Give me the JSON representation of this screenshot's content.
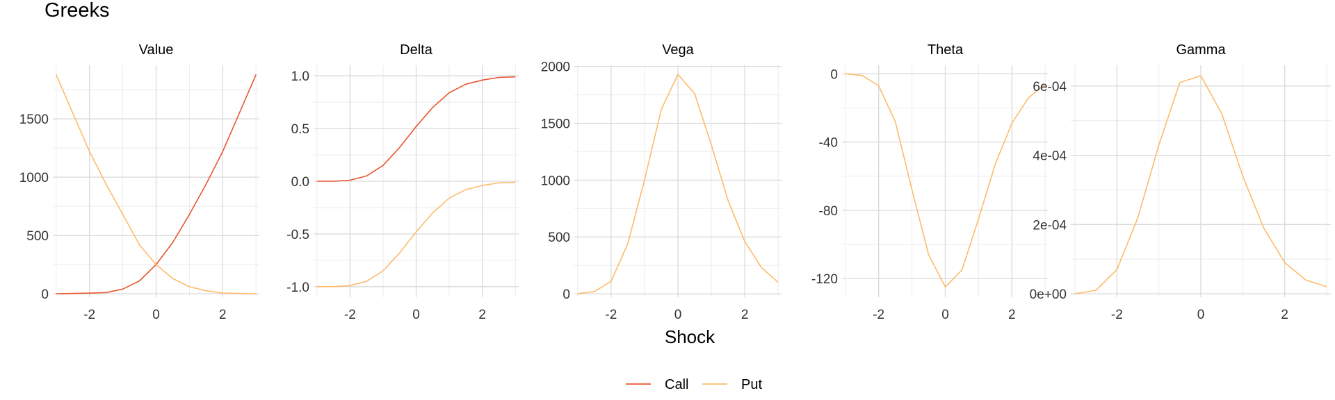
{
  "title": "Greeks",
  "xlabel": "Shock",
  "colors": {
    "call": "#E8552F",
    "put": "#FDBB6B",
    "grid_major": "#D9D9D9",
    "grid_minor": "#EBEBEB",
    "text": "#333333",
    "title": "#000000"
  },
  "legend": {
    "position": "bottom",
    "entries": [
      {
        "name": "Call",
        "color": "#E8552F"
      },
      {
        "name": "Put",
        "color": "#FDBB6B"
      }
    ]
  },
  "chart_data": [
    {
      "type": "line",
      "panel": "Value",
      "x": [
        -3,
        -2.5,
        -2,
        -1.5,
        -1,
        -0.5,
        0,
        0.5,
        1,
        1.5,
        2,
        2.5,
        3
      ],
      "xlim": [
        -3.1,
        3.1
      ],
      "xticks": [
        -2,
        0,
        2
      ],
      "ylim": [
        -30,
        1960
      ],
      "yticks": [
        0,
        500,
        1000,
        1500
      ],
      "ytick_labels": [
        "0",
        "500",
        "1000",
        "1500"
      ],
      "series": [
        {
          "name": "Call",
          "values": [
            0,
            2,
            5,
            10,
            40,
            110,
            250,
            440,
            680,
            940,
            1220,
            1550,
            1880
          ]
        },
        {
          "name": "Put",
          "values": [
            1880,
            1550,
            1220,
            940,
            680,
            420,
            250,
            130,
            60,
            25,
            5,
            2,
            0
          ]
        }
      ]
    },
    {
      "type": "line",
      "panel": "Delta",
      "x": [
        -3,
        -2.5,
        -2,
        -1.5,
        -1,
        -0.5,
        0,
        0.5,
        1,
        1.5,
        2,
        2.5,
        3
      ],
      "xlim": [
        -3.1,
        3.1
      ],
      "xticks": [
        -2,
        0,
        2
      ],
      "ylim": [
        -1.1,
        1.1
      ],
      "yticks": [
        -1.0,
        -0.5,
        0.0,
        0.5,
        1.0
      ],
      "ytick_labels": [
        "-1.0",
        "-0.5",
        "0.0",
        "0.5",
        "1.0"
      ],
      "series": [
        {
          "name": "Call",
          "values": [
            0,
            0,
            0.01,
            0.05,
            0.15,
            0.32,
            0.52,
            0.7,
            0.84,
            0.92,
            0.96,
            0.985,
            0.99
          ]
        },
        {
          "name": "Put",
          "values": [
            -1.0,
            -1.0,
            -0.99,
            -0.95,
            -0.85,
            -0.68,
            -0.48,
            -0.3,
            -0.16,
            -0.08,
            -0.04,
            -0.015,
            -0.01
          ]
        }
      ]
    },
    {
      "type": "line",
      "panel": "Vega",
      "x": [
        -3,
        -2.5,
        -2,
        -1.5,
        -1,
        -0.5,
        0,
        0.5,
        1,
        1.5,
        2,
        2.5,
        3
      ],
      "xlim": [
        -3.1,
        3.1
      ],
      "xticks": [
        -2,
        0,
        2
      ],
      "ylim": [
        -30,
        2010
      ],
      "yticks": [
        0,
        500,
        1000,
        1500,
        2000
      ],
      "ytick_labels": [
        "0",
        "500",
        "1000",
        "1500",
        "2000"
      ],
      "series": [
        {
          "name": "Put",
          "values": [
            0,
            20,
            110,
            440,
            1000,
            1620,
            1930,
            1760,
            1310,
            820,
            460,
            230,
            100
          ]
        }
      ]
    },
    {
      "type": "line",
      "panel": "Theta",
      "x": [
        -3,
        -2.5,
        -2,
        -1.5,
        -1,
        -0.5,
        0,
        0.5,
        1,
        1.5,
        2,
        2.5,
        3
      ],
      "xlim": [
        -3.1,
        3.1
      ],
      "xticks": [
        -2,
        0,
        2
      ],
      "ylim": [
        -131,
        5
      ],
      "yticks": [
        -120,
        -80,
        -40,
        0
      ],
      "ytick_labels": [
        "-120",
        "-80",
        "-40",
        "0"
      ],
      "series": [
        {
          "name": "Put",
          "values": [
            0,
            -1,
            -7,
            -28,
            -68,
            -106,
            -125,
            -115,
            -85,
            -53,
            -29,
            -14,
            -6
          ]
        }
      ]
    },
    {
      "type": "line",
      "panel": "Gamma",
      "x": [
        -3,
        -2.5,
        -2,
        -1.5,
        -1,
        -0.5,
        0,
        0.5,
        1,
        1.5,
        2,
        2.5,
        3
      ],
      "xlim": [
        -3.1,
        3.1
      ],
      "xticks": [
        -2,
        0,
        2
      ],
      "ylim": [
        -1e-05,
        0.00066
      ],
      "yticks": [
        0,
        0.0002,
        0.0004,
        0.0006
      ],
      "ytick_labels": [
        "0e+00",
        "2e-04",
        "4e-04",
        "6e-04"
      ],
      "series": [
        {
          "name": "Put",
          "values": [
            0,
            1e-05,
            7e-05,
            0.00022,
            0.00043,
            0.00061,
            0.00063,
            0.00052,
            0.00034,
            0.00019,
            9e-05,
            4e-05,
            2e-05
          ]
        }
      ]
    }
  ]
}
